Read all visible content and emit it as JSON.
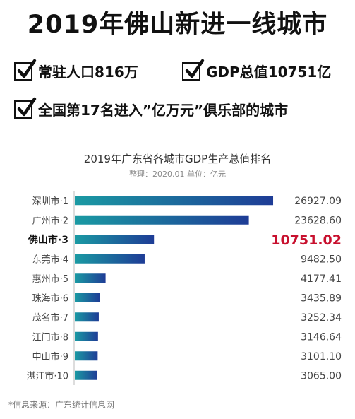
{
  "headline": "2019年佛山新进一线城市",
  "bullets": [
    "常驻人口816万",
    "GDP总值10751亿",
    "全国第17名进入”亿万元”俱乐部的城市"
  ],
  "source": "*信息来源：广东统计信息网",
  "colors": {
    "bar_start": "#1a9aa3",
    "bar_end": "#1e3c96",
    "highlight": "#c8102e"
  },
  "chart_data": {
    "type": "bar",
    "orientation": "horizontal",
    "title": "2019年广东省各城市GDP生产总值排名",
    "subtitle": "整理：2020.01   单位：亿元",
    "categories": [
      "深圳市·1",
      "广州市·2",
      "佛山市·3",
      "东莞市·4",
      "惠州市·5",
      "珠海市·6",
      "茂名市·7",
      "江门市·8",
      "中山市·9",
      "湛江市·10"
    ],
    "values": [
      26927.09,
      23628.6,
      10751.02,
      9482.5,
      4177.41,
      3435.89,
      3252.34,
      3146.64,
      3101.1,
      3065.0
    ],
    "value_labels": [
      "26927.09",
      "23628.60",
      "10751.02",
      "9482.50",
      "4177.41",
      "3435.89",
      "3252.34",
      "3146.64",
      "3101.10",
      "3065.00"
    ],
    "highlight_index": 2,
    "xlim": [
      0,
      27500
    ],
    "grid": false
  }
}
